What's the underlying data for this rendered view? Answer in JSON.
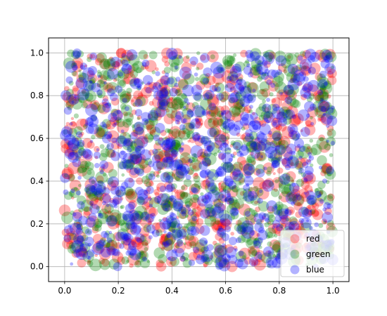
{
  "chart_data": {
    "type": "scatter",
    "title": "",
    "xlabel": "",
    "ylabel": "",
    "xlim": [
      -0.06,
      1.06
    ],
    "ylim": [
      -0.07,
      1.07
    ],
    "grid": true,
    "legend_position": "lower-right",
    "x_ticks": [
      "0.0",
      "0.2",
      "0.4",
      "0.6",
      "0.8",
      "1.0"
    ],
    "y_ticks": [
      "0.0",
      "0.2",
      "0.4",
      "0.6",
      "0.8",
      "1.0"
    ],
    "marker_alpha": 0.3,
    "points_per_series": 750,
    "series": [
      {
        "name": "red",
        "color": "#ff0000"
      },
      {
        "name": "green",
        "color": "#008000"
      },
      {
        "name": "blue",
        "color": "#0000ff"
      }
    ]
  }
}
